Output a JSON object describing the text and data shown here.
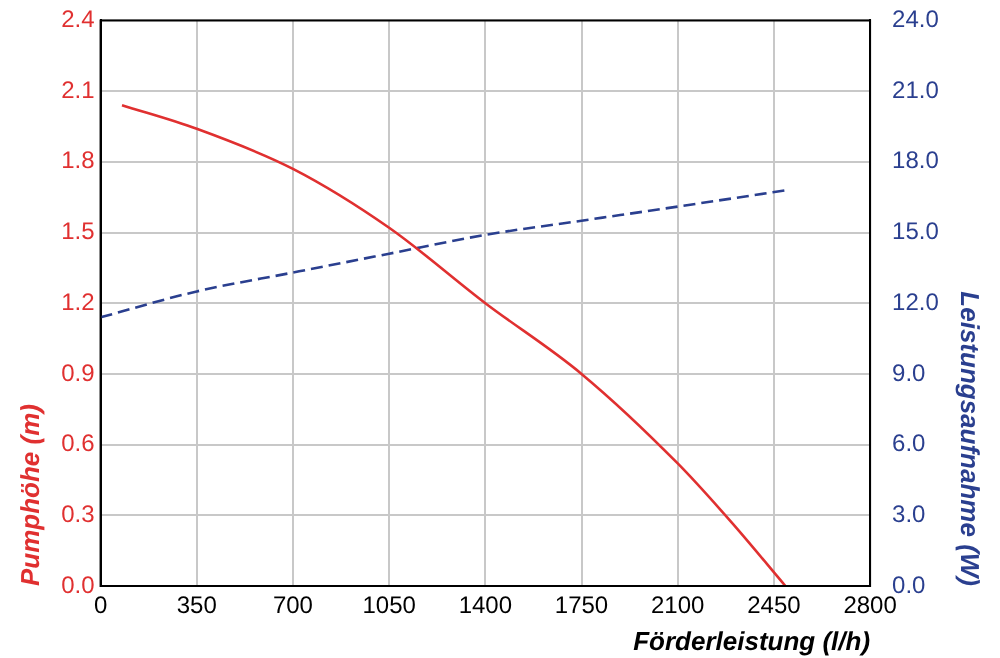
{
  "chart_data": {
    "type": "line",
    "xlabel": "Förderleistung (l/h)",
    "ylabel": "Pumphöhe (m)",
    "y2label": "Leistungsaufnahme (W)",
    "xlim": [
      0,
      2800
    ],
    "xticks": [
      0,
      350,
      700,
      1050,
      1400,
      1750,
      2100,
      2450,
      2800
    ],
    "ylim": [
      0,
      2.4
    ],
    "yticks": [
      {
        "value": 0,
        "label": "0.0"
      },
      0.3,
      0.6,
      0.9,
      1.2,
      1.5,
      1.8,
      2.1,
      2.4
    ],
    "y2lim": [
      0,
      24
    ],
    "y2ticks": [
      {
        "value": 0,
        "label": "0.0"
      },
      {
        "value": 3,
        "label": "3.0"
      },
      {
        "value": 6,
        "label": "6.0"
      },
      {
        "value": 9,
        "label": "9.0"
      },
      {
        "value": 12,
        "label": "12.0"
      },
      {
        "value": 15,
        "label": "15.0"
      },
      {
        "value": 18,
        "label": "18.0"
      },
      {
        "value": 21,
        "label": "21.0"
      },
      {
        "value": 24,
        "label": "24.0"
      }
    ],
    "grid": true,
    "legend": false,
    "marker": "none",
    "series": [
      {
        "color": "#e03030",
        "line_style": "solid",
        "x": [
          78,
          350,
          700,
          1050,
          1400,
          1750,
          2100,
          2296,
          2492
        ],
        "values": [
          2.04,
          1.94,
          1.77,
          1.52,
          1.2,
          0.9,
          0.52,
          0.27,
          0
        ]
      },
      {
        "color": "#2a3f8f",
        "axis": "y2",
        "line_style": "dashed",
        "x": [
          0,
          350,
          700,
          1050,
          1400,
          1750,
          2100,
          2500
        ],
        "values": [
          11.4,
          12.5,
          13.3,
          14.1,
          14.9,
          15.5,
          16.1,
          16.8
        ]
      }
    ]
  }
}
